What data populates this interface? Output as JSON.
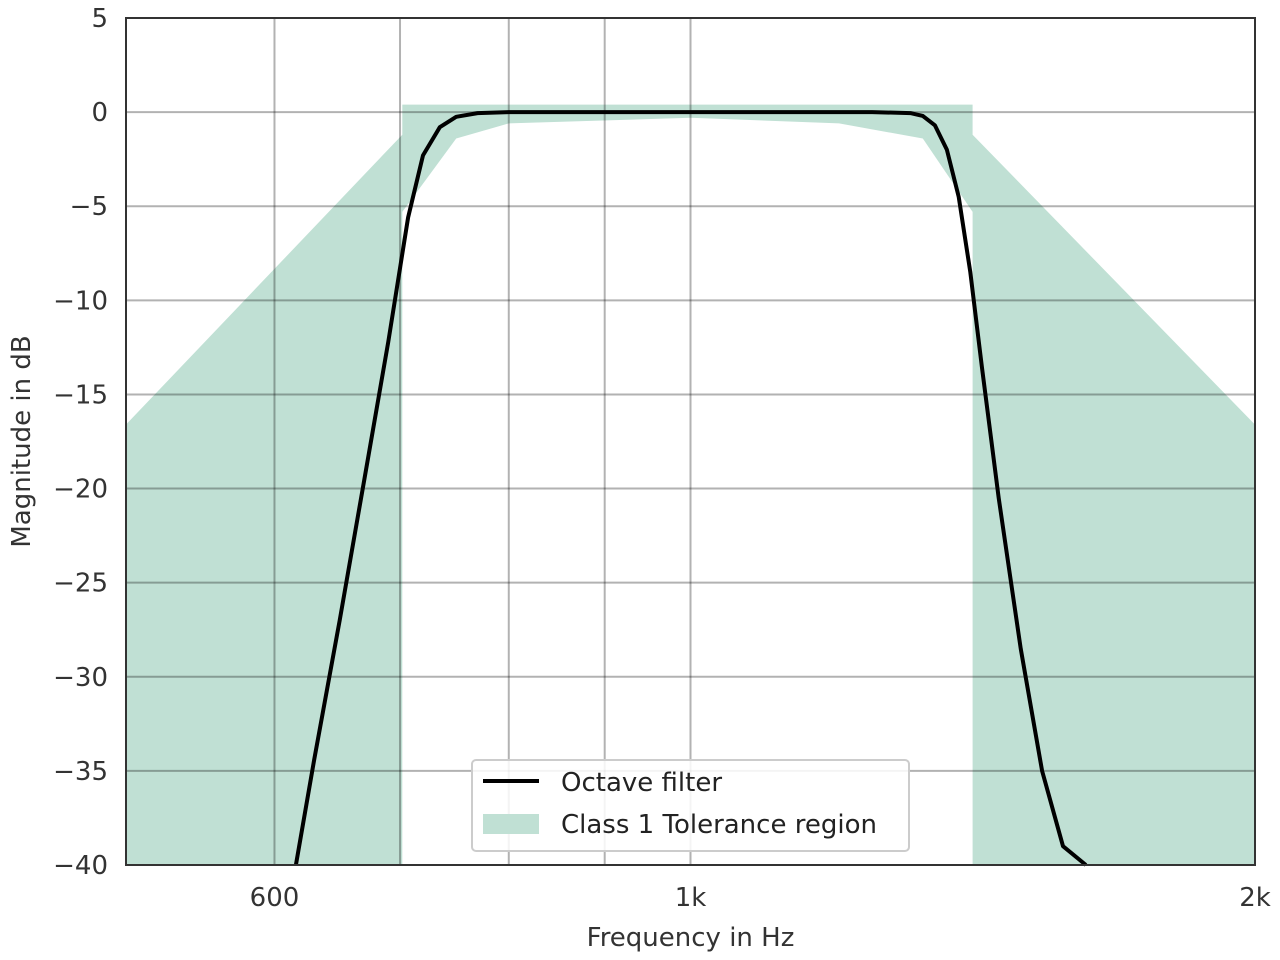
{
  "chart_data": {
    "type": "line",
    "title": "",
    "xlabel": "Frequency in Hz",
    "ylabel": "Magnitude in dB",
    "x_scale": "log",
    "xlim": [
      500,
      2000
    ],
    "ylim": [
      -40,
      5
    ],
    "grid": true,
    "legend_position": "bottom-center",
    "x_ticks": [
      {
        "value": 600,
        "label": "600"
      },
      {
        "value": 1000,
        "label": "1k"
      },
      {
        "value": 2000,
        "label": "2k"
      }
    ],
    "x_minor_gridlines": [
      700,
      800,
      900
    ],
    "y_ticks": [
      {
        "value": 5,
        "label": "5"
      },
      {
        "value": 0,
        "label": "0"
      },
      {
        "value": -5,
        "label": "−5"
      },
      {
        "value": -10,
        "label": "−10"
      },
      {
        "value": -15,
        "label": "−15"
      },
      {
        "value": -20,
        "label": "−20"
      },
      {
        "value": -25,
        "label": "−25"
      },
      {
        "value": -30,
        "label": "−30"
      },
      {
        "value": -35,
        "label": "−35"
      },
      {
        "value": -40,
        "label": "−40"
      }
    ],
    "series": [
      {
        "name": "Octave filter",
        "color": "#000000",
        "x": [
          616,
          630,
          650,
          670,
          690,
          707,
          720,
          735,
          750,
          770,
          800,
          900,
          1000,
          1100,
          1250,
          1310,
          1330,
          1350,
          1370,
          1390,
          1410,
          1430,
          1460,
          1500,
          1540,
          1580,
          1625
        ],
        "y": [
          -40,
          -34.4,
          -27,
          -19.5,
          -12.2,
          -5.6,
          -2.3,
          -0.8,
          -0.25,
          -0.05,
          0,
          0,
          0,
          0,
          0,
          -0.05,
          -0.2,
          -0.7,
          -2.0,
          -4.5,
          -8.5,
          -13.5,
          -20.5,
          -28.5,
          -35.0,
          -39.0,
          -40
        ]
      }
    ],
    "tolerance_region": {
      "name": "Class 1 Tolerance region",
      "color": "#c0e0d4",
      "upper": {
        "x": [
          500,
          702,
          702,
          1414,
          1414,
          2000
        ],
        "y": [
          -16.6,
          -1.2,
          0.4,
          0.4,
          -1.2,
          -16.6
        ]
      },
      "lower": {
        "x": [
          702,
          702,
          750,
          800,
          1000,
          1200,
          1330,
          1414,
          1414
        ],
        "y": [
          -40,
          -5.3,
          -1.4,
          -0.6,
          -0.3,
          -0.6,
          -1.4,
          -5.3,
          -40
        ]
      }
    }
  }
}
